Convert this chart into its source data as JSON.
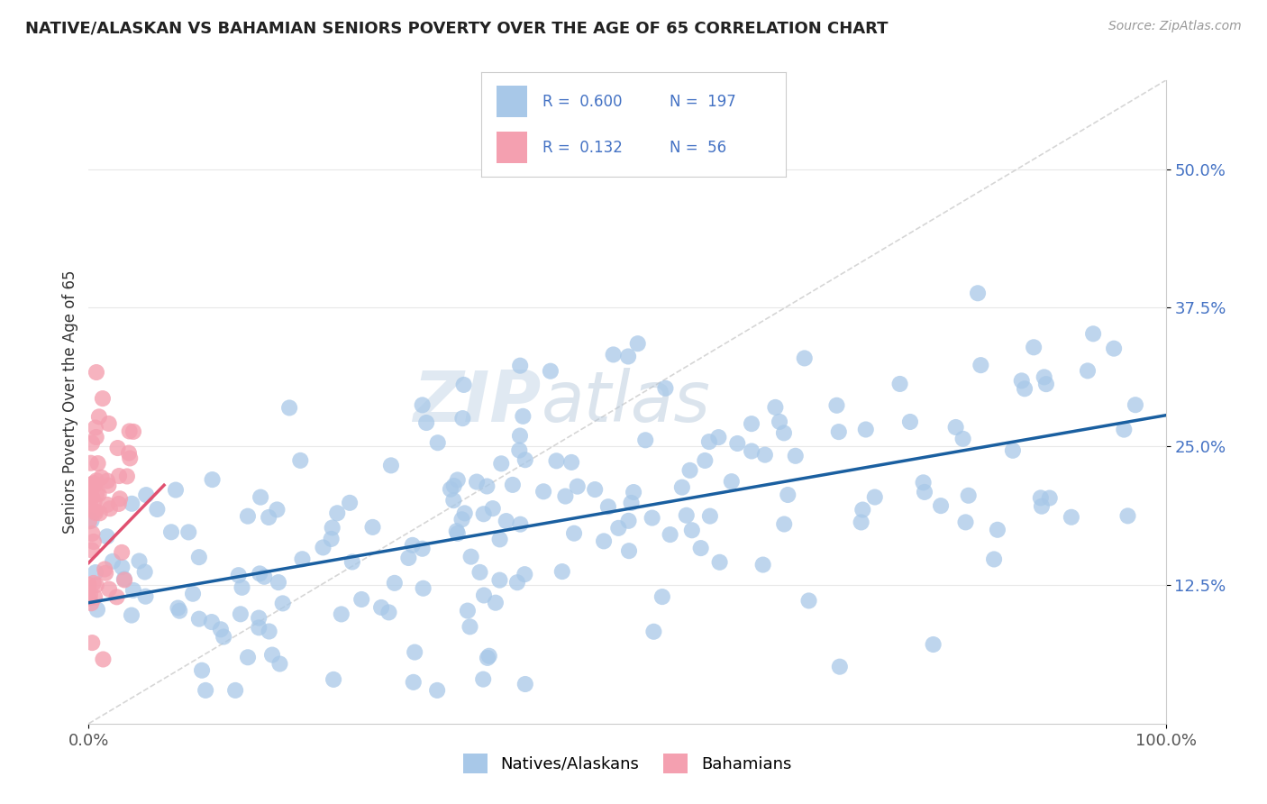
{
  "title": "NATIVE/ALASKAN VS BAHAMIAN SENIORS POVERTY OVER THE AGE OF 65 CORRELATION CHART",
  "source_text": "Source: ZipAtlas.com",
  "ylabel": "Seniors Poverty Over the Age of 65",
  "xlim": [
    0,
    1.0
  ],
  "ylim": [
    0.0,
    0.58
  ],
  "xticks": [
    0.0,
    1.0
  ],
  "xtick_labels": [
    "0.0%",
    "100.0%"
  ],
  "ytick_labels": [
    "12.5%",
    "25.0%",
    "37.5%",
    "50.0%"
  ],
  "yticks": [
    0.125,
    0.25,
    0.375,
    0.5
  ],
  "blue_color": "#a8c8e8",
  "pink_color": "#f4a0b0",
  "blue_line_color": "#1a5fa0",
  "pink_line_color": "#e05070",
  "legend_R1": "0.600",
  "legend_N1": "197",
  "legend_R2": "0.132",
  "legend_N2": "56",
  "legend_label1": "Natives/Alaskans",
  "legend_label2": "Bahamians",
  "watermark_zip": "ZIP",
  "watermark_atlas": "atlas",
  "background_color": "#ffffff",
  "blue_N": 197,
  "pink_N": 56,
  "seed": 77
}
